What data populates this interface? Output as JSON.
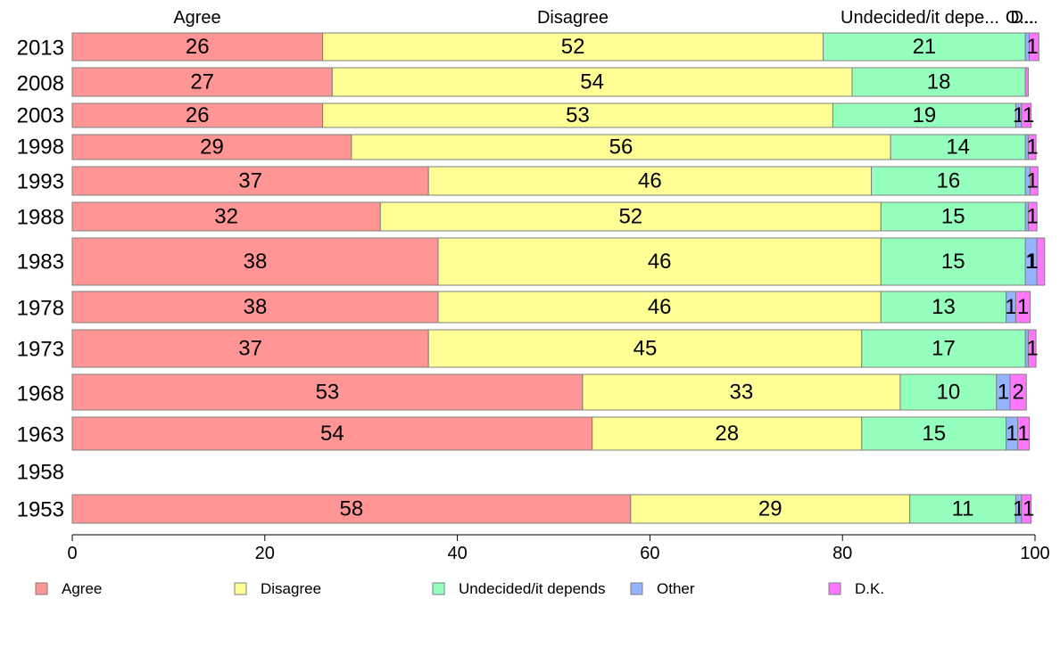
{
  "chart_data": {
    "type": "bar",
    "orientation": "horizontal",
    "stacked": true,
    "categories": [
      "2013",
      "2008",
      "2003",
      "1998",
      "1993",
      "1988",
      "1983",
      "1978",
      "1973",
      "1968",
      "1963",
      "1958",
      "1953"
    ],
    "series": [
      {
        "name": "Agree",
        "color": "#ff9595",
        "values": [
          26,
          27,
          26,
          29,
          37,
          32,
          38,
          38,
          37,
          53,
          54,
          null,
          58
        ]
      },
      {
        "name": "Disagree",
        "color": "#ffff95",
        "values": [
          52,
          54,
          53,
          56,
          46,
          52,
          46,
          46,
          45,
          33,
          28,
          null,
          29
        ]
      },
      {
        "name": "Undecided/it depends",
        "color": "#95ffbe",
        "values": [
          21,
          18,
          19,
          14,
          16,
          15,
          15,
          13,
          17,
          10,
          15,
          null,
          11
        ]
      },
      {
        "name": "Other",
        "color": "#95b3ff",
        "values": [
          0.4,
          0,
          0.6,
          0.3,
          0.5,
          0.3,
          1.2,
          1,
          0.3,
          1.4,
          1.2,
          null,
          0.6
        ]
      },
      {
        "name": "D.K.",
        "color": "#ff77ff",
        "values": [
          1,
          0.3,
          1,
          0.8,
          0.8,
          0.9,
          0.8,
          1.5,
          0.8,
          1.7,
          1.2,
          null,
          1
        ]
      }
    ],
    "segment_labels": [
      [
        "26",
        "52",
        "21",
        "",
        "1"
      ],
      [
        "27",
        "54",
        "18",
        "",
        ""
      ],
      [
        "26",
        "53",
        "19",
        "1",
        "1"
      ],
      [
        "29",
        "56",
        "14",
        "",
        "1"
      ],
      [
        "37",
        "46",
        "16",
        "",
        "1"
      ],
      [
        "32",
        "52",
        "15",
        "",
        "1"
      ],
      [
        "38",
        "46",
        "15",
        "1",
        "1"
      ],
      [
        "38",
        "46",
        "13",
        "1",
        "1"
      ],
      [
        "37",
        "45",
        "17",
        "",
        "1"
      ],
      [
        "53",
        "33",
        "10",
        "1",
        "2"
      ],
      [
        "54",
        "28",
        "15",
        "1",
        "1"
      ],
      [
        "",
        "",
        "",
        "",
        ""
      ],
      [
        "58",
        "29",
        "11",
        "1",
        "1"
      ]
    ],
    "column_headers": [
      "Agree",
      "Disagree",
      "Undecided/it depe...",
      "O...",
      "D..."
    ],
    "xlim": [
      0,
      100
    ],
    "x_ticks": [
      "0",
      "20",
      "40",
      "60",
      "80",
      "100"
    ],
    "legend": {
      "placement": "bottom",
      "entries": [
        "Agree",
        "Disagree",
        "Undecided/it depends",
        "Other",
        "D.K."
      ]
    },
    "grid": false,
    "bar_border_color": "#7f7f7f"
  }
}
